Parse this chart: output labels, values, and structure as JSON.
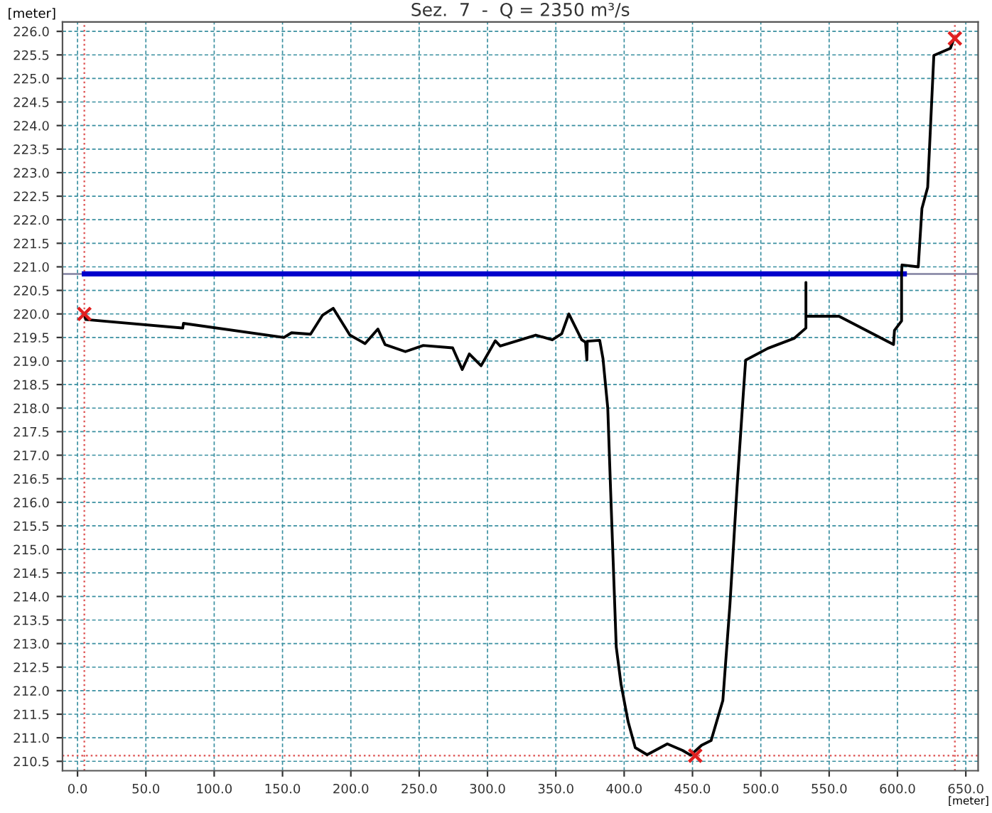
{
  "chart_data": {
    "type": "line",
    "title": "Sez.  7  -  Q = 2350 m³/s",
    "xlabel": "[meter]",
    "ylabel": "[meter]",
    "xlim": [
      -11,
      659
    ],
    "ylim": [
      210.3,
      226.2
    ],
    "xticks": [
      {
        "value": 0,
        "label": "0.0"
      },
      {
        "value": 50,
        "label": "50.0"
      },
      {
        "value": 100,
        "label": "100.0"
      },
      {
        "value": 150,
        "label": "150.0"
      },
      {
        "value": 200,
        "label": "200.0"
      },
      {
        "value": 250,
        "label": "250.0"
      },
      {
        "value": 300,
        "label": "300.0"
      },
      {
        "value": 350,
        "label": "350.0"
      },
      {
        "value": 400,
        "label": "400.0"
      },
      {
        "value": 450,
        "label": "450.0"
      },
      {
        "value": 500,
        "label": "500.0"
      },
      {
        "value": 550,
        "label": "550.0"
      },
      {
        "value": 600,
        "label": "600.0"
      },
      {
        "value": 650,
        "label": "650.0"
      }
    ],
    "yticks": [
      {
        "value": 210.5,
        "label": "210.5"
      },
      {
        "value": 211,
        "label": "211.0"
      },
      {
        "value": 211.5,
        "label": "211.5"
      },
      {
        "value": 212,
        "label": "212.0"
      },
      {
        "value": 212.5,
        "label": "212.5"
      },
      {
        "value": 213,
        "label": "213.0"
      },
      {
        "value": 213.5,
        "label": "213.5"
      },
      {
        "value": 214,
        "label": "214.0"
      },
      {
        "value": 214.5,
        "label": "214.5"
      },
      {
        "value": 215,
        "label": "215.0"
      },
      {
        "value": 215.5,
        "label": "215.5"
      },
      {
        "value": 216,
        "label": "216.0"
      },
      {
        "value": 216.5,
        "label": "216.5"
      },
      {
        "value": 217,
        "label": "217.0"
      },
      {
        "value": 217.5,
        "label": "217.5"
      },
      {
        "value": 218,
        "label": "218.0"
      },
      {
        "value": 218.5,
        "label": "218.5"
      },
      {
        "value": 219,
        "label": "219.0"
      },
      {
        "value": 219.5,
        "label": "219.5"
      },
      {
        "value": 220,
        "label": "220.0"
      },
      {
        "value": 220.5,
        "label": "220.5"
      },
      {
        "value": 221,
        "label": "221.0"
      },
      {
        "value": 221.5,
        "label": "221.5"
      },
      {
        "value": 222,
        "label": "222.0"
      },
      {
        "value": 222.5,
        "label": "222.5"
      },
      {
        "value": 223,
        "label": "223.0"
      },
      {
        "value": 223.5,
        "label": "223.5"
      },
      {
        "value": 224,
        "label": "224.0"
      },
      {
        "value": 224.5,
        "label": "224.5"
      },
      {
        "value": 225,
        "label": "225.0"
      },
      {
        "value": 225.5,
        "label": "225.5"
      },
      {
        "value": 226,
        "label": "226.0"
      }
    ],
    "grid": true,
    "ref_lines": [
      {
        "axis": "y",
        "value": 220.85,
        "color": "#8080a0",
        "line_style": "solid"
      },
      {
        "axis": "x",
        "value": 5,
        "color": "#e06060",
        "line_style": "dotted"
      },
      {
        "axis": "x",
        "value": 642,
        "color": "#e06060",
        "line_style": "dotted"
      },
      {
        "axis": "y",
        "value": 210.62,
        "color": "#e06060",
        "line_style": "dotted"
      }
    ],
    "series": [
      {
        "color": "#0000cc",
        "x": [
          5,
          605
        ],
        "values": [
          220.85,
          220.85
        ]
      },
      {
        "color": "#000000",
        "marker": "none",
        "line_style": "solid",
        "x": [
          5,
          6,
          77,
          77.5,
          151,
          156.6,
          170.5,
          179.2,
          187.1,
          199.3,
          210.4,
          219.8,
          225,
          239.9,
          253,
          274.5,
          281.5,
          286.7,
          295.3,
          305.7,
          309.3,
          335.3,
          347.4,
          354.3,
          359.5,
          368.9,
          371.7,
          372.7,
          373,
          382.1,
          384.5,
          388,
          390,
          394.2,
          397.7,
          402.9,
          408.1,
          416.8,
          431.6,
          442.8,
          448.7,
          456.6,
          463.6,
          472.2,
          477.4,
          482.6,
          487.2,
          488.9,
          505.2,
          524.3,
          533,
          533,
          533,
          557.2,
          597.1,
          597.8,
          603,
          603,
          603.3,
          615.2,
          617.9,
          622.1,
          626.6,
          638.7,
          641
        ],
        "values": [
          220.0,
          219.88,
          219.7,
          219.8,
          219.5,
          219.6,
          219.57,
          219.97,
          220.12,
          219.55,
          219.37,
          219.68,
          219.35,
          219.2,
          219.33,
          219.28,
          218.82,
          219.15,
          218.9,
          219.43,
          219.32,
          219.55,
          219.45,
          219.58,
          220.0,
          219.45,
          219.4,
          219.02,
          219.42,
          219.44,
          219.05,
          218.0,
          216.32,
          212.93,
          212.14,
          211.34,
          210.79,
          210.64,
          210.87,
          210.73,
          210.63,
          210.84,
          210.94,
          211.79,
          213.83,
          216.32,
          218.31,
          219.02,
          219.27,
          219.48,
          219.7,
          220.67,
          219.95,
          219.95,
          219.35,
          219.65,
          219.85,
          220.85,
          221.04,
          221.0,
          222.24,
          222.69,
          225.49,
          225.64,
          225.82
        ]
      },
      {
        "type": "scatter",
        "color": "#e02020",
        "marker": "cross",
        "x": [
          5,
          452,
          642
        ],
        "values": [
          220.0,
          210.62,
          225.85
        ]
      }
    ]
  }
}
